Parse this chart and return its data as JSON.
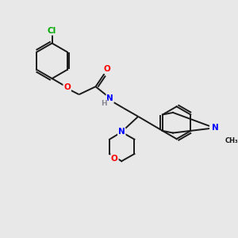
{
  "background_color": "#e8e8e8",
  "bond_color": "#1a1a1a",
  "atom_colors": {
    "Cl": "#00aa00",
    "O": "#ff0000",
    "N": "#0000ff",
    "H": "#888899"
  },
  "figsize": [
    3.0,
    3.0
  ],
  "dpi": 100,
  "lw": 1.4
}
